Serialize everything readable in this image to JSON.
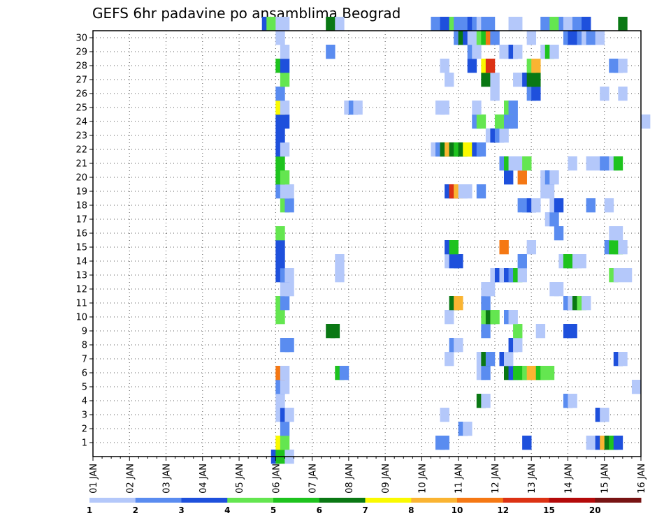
{
  "chart_data": {
    "type": "heatmap",
    "title": "GEFS 6hr padavine po ansamblima Beograd",
    "x_tick_labels": [
      "01 JAN",
      "02 JAN",
      "03 JAN",
      "04 JAN",
      "05 JAN",
      "06 JAN",
      "07 JAN",
      "08 JAN",
      "09 JAN",
      "10 JAN",
      "11 JAN",
      "12 JAN",
      "13 JAN",
      "14 JAN",
      "15 JAN",
      "16 JAN"
    ],
    "xlim": [
      "01 JAN 00Z",
      "16 JAN 00Z"
    ],
    "x_step_hours": 6,
    "y_tick_labels": [
      "1",
      "2",
      "3",
      "4",
      "5",
      "6",
      "7",
      "8",
      "9",
      "10",
      "11",
      "12",
      "13",
      "14",
      "15",
      "16",
      "17",
      "18",
      "19",
      "20",
      "21",
      "22",
      "23",
      "24",
      "25",
      "26",
      "27",
      "28",
      "29",
      "30"
    ],
    "ylim": [
      0,
      30
    ],
    "grid": true,
    "legend_placement": "bottom",
    "legend": {
      "labels": [
        "1",
        "2",
        "3",
        "4",
        "5",
        "6",
        "7",
        "8",
        "10",
        "12",
        "15",
        "20"
      ],
      "colors": [
        "#b4c8fa",
        "#5a8cf0",
        "#1e50dc",
        "#64e650",
        "#1ec31e",
        "#0a7814",
        "#fafa00",
        "#fab432",
        "#f57814",
        "#dc3214",
        "#b40a0a",
        "#781414"
      ]
    },
    "cell_value_meaning": "legend color class index: 0 = [1,2), 1 = [2,3), 2 = [3,4), 3 = [4,5), 4 = [5,6), 5 = [6,7), 6 = [7,8), 7 = [8,10), 8 = [10,12), 9 = [12,15), 10 = [15,20), 11 = 20+",
    "cells": [
      [
        9.75,
        0,
        2
      ],
      [
        10,
        0,
        4
      ],
      [
        10.5,
        0,
        0
      ],
      [
        10,
        1,
        6
      ],
      [
        10.25,
        1,
        3
      ],
      [
        18.75,
        1,
        1
      ],
      [
        19,
        1,
        1
      ],
      [
        23.5,
        1,
        2
      ],
      [
        27,
        1,
        0
      ],
      [
        27.25,
        1,
        0
      ],
      [
        27.5,
        1,
        2
      ],
      [
        27.75,
        1,
        7
      ],
      [
        28,
        1,
        5
      ],
      [
        28.25,
        1,
        4
      ],
      [
        28.5,
        1,
        2
      ],
      [
        10.25,
        2,
        1
      ],
      [
        20,
        2,
        1
      ],
      [
        20.25,
        2,
        0
      ],
      [
        10,
        3,
        0
      ],
      [
        10.25,
        3,
        2
      ],
      [
        10.5,
        3,
        0
      ],
      [
        19,
        3,
        0
      ],
      [
        27.5,
        3,
        2
      ],
      [
        27.75,
        3,
        0
      ],
      [
        10,
        4,
        0
      ],
      [
        21,
        4,
        5
      ],
      [
        21.25,
        4,
        0
      ],
      [
        25.75,
        4,
        1
      ],
      [
        26,
        4,
        0
      ],
      [
        10,
        5,
        1
      ],
      [
        10.25,
        5,
        0
      ],
      [
        29.5,
        5,
        0
      ],
      [
        10,
        6,
        8
      ],
      [
        10.25,
        6,
        0
      ],
      [
        13.25,
        6,
        4
      ],
      [
        13.5,
        6,
        1
      ],
      [
        21,
        6,
        0
      ],
      [
        21.25,
        6,
        1
      ],
      [
        22.5,
        6,
        5
      ],
      [
        22.75,
        6,
        2
      ],
      [
        23,
        6,
        4
      ],
      [
        23.25,
        6,
        4
      ],
      [
        23.5,
        6,
        3
      ],
      [
        23.75,
        6,
        7
      ],
      [
        24,
        6,
        7
      ],
      [
        24.25,
        6,
        4
      ],
      [
        24.5,
        6,
        3
      ],
      [
        24.75,
        6,
        3
      ],
      [
        19.25,
        7,
        0
      ],
      [
        21,
        7,
        0
      ],
      [
        21.25,
        7,
        5
      ],
      [
        21.5,
        7,
        1
      ],
      [
        22.25,
        7,
        2
      ],
      [
        22.5,
        7,
        0
      ],
      [
        28.5,
        7,
        2
      ],
      [
        28.75,
        7,
        0
      ],
      [
        10.25,
        8,
        1
      ],
      [
        10.5,
        8,
        1
      ],
      [
        19.5,
        8,
        1
      ],
      [
        19.75,
        8,
        0
      ],
      [
        22.75,
        8,
        2
      ],
      [
        23,
        8,
        0
      ],
      [
        12.75,
        9,
        5
      ],
      [
        13,
        9,
        5
      ],
      [
        21.25,
        9,
        1
      ],
      [
        23,
        9,
        3
      ],
      [
        24.25,
        9,
        0
      ],
      [
        25.75,
        9,
        2
      ],
      [
        26,
        9,
        2
      ],
      [
        10,
        10,
        3
      ],
      [
        19.25,
        10,
        0
      ],
      [
        21.25,
        10,
        3
      ],
      [
        21.5,
        10,
        5
      ],
      [
        21.75,
        10,
        3
      ],
      [
        22.5,
        10,
        1
      ],
      [
        22.75,
        10,
        0
      ],
      [
        10,
        11,
        3
      ],
      [
        10.25,
        11,
        1
      ],
      [
        19.5,
        11,
        5
      ],
      [
        19.75,
        11,
        7
      ],
      [
        21.25,
        11,
        1
      ],
      [
        25.75,
        11,
        1
      ],
      [
        26,
        11,
        0
      ],
      [
        26.25,
        11,
        5
      ],
      [
        26.5,
        11,
        3
      ],
      [
        26.75,
        11,
        0
      ],
      [
        10.25,
        12,
        0
      ],
      [
        10.5,
        12,
        0
      ],
      [
        21.25,
        12,
        0
      ],
      [
        21.5,
        12,
        0
      ],
      [
        25,
        12,
        0
      ],
      [
        25.25,
        12,
        0
      ],
      [
        10,
        13,
        2
      ],
      [
        10.25,
        13,
        1
      ],
      [
        10.5,
        13,
        0
      ],
      [
        13.25,
        13,
        0
      ],
      [
        21.75,
        13,
        0
      ],
      [
        22,
        13,
        2
      ],
      [
        22.25,
        13,
        0
      ],
      [
        22.5,
        13,
        2
      ],
      [
        22.75,
        13,
        1
      ],
      [
        23,
        13,
        4
      ],
      [
        23.25,
        13,
        0
      ],
      [
        28.25,
        13,
        3
      ],
      [
        28.5,
        13,
        0
      ],
      [
        29,
        13,
        0
      ],
      [
        10,
        14,
        2
      ],
      [
        13.25,
        14,
        0
      ],
      [
        19.25,
        14,
        0
      ],
      [
        19.5,
        14,
        2
      ],
      [
        19.75,
        14,
        2
      ],
      [
        23.25,
        14,
        1
      ],
      [
        25.5,
        14,
        0
      ],
      [
        25.75,
        14,
        4
      ],
      [
        26,
        14,
        4
      ],
      [
        26.25,
        14,
        0
      ],
      [
        26.5,
        14,
        0
      ],
      [
        10,
        15,
        2
      ],
      [
        19.25,
        15,
        2
      ],
      [
        19.5,
        15,
        4
      ],
      [
        22.25,
        15,
        8
      ],
      [
        23.75,
        15,
        0
      ],
      [
        28,
        15,
        1
      ],
      [
        28.25,
        15,
        4
      ],
      [
        28.5,
        15,
        4
      ],
      [
        28.75,
        15,
        0
      ],
      [
        10,
        16,
        3
      ],
      [
        25.25,
        16,
        1
      ],
      [
        28.25,
        16,
        0
      ],
      [
        28.5,
        16,
        0
      ],
      [
        24.75,
        17,
        0
      ],
      [
        25,
        17,
        1
      ],
      [
        10.25,
        18,
        3
      ],
      [
        10.5,
        18,
        1
      ],
      [
        23.25,
        18,
        1
      ],
      [
        23.5,
        18,
        1
      ],
      [
        23.75,
        18,
        2
      ],
      [
        24,
        18,
        0
      ],
      [
        25,
        18,
        0
      ],
      [
        25.25,
        18,
        2
      ],
      [
        27,
        18,
        1
      ],
      [
        28,
        18,
        0
      ],
      [
        10,
        19,
        1
      ],
      [
        10.25,
        19,
        0
      ],
      [
        10.5,
        19,
        0
      ],
      [
        19.25,
        19,
        2
      ],
      [
        19.5,
        19,
        9
      ],
      [
        19.75,
        19,
        7
      ],
      [
        20,
        19,
        0
      ],
      [
        20.25,
        19,
        0
      ],
      [
        21,
        19,
        1
      ],
      [
        24.5,
        19,
        0
      ],
      [
        24.75,
        19,
        0
      ],
      [
        10,
        20,
        4
      ],
      [
        10.25,
        20,
        3
      ],
      [
        22.5,
        20,
        2
      ],
      [
        23.25,
        20,
        8
      ],
      [
        24.5,
        20,
        0
      ],
      [
        24.75,
        20,
        1
      ],
      [
        25,
        20,
        0
      ],
      [
        10,
        21,
        4
      ],
      [
        22.25,
        21,
        1
      ],
      [
        22.5,
        21,
        4
      ],
      [
        22.75,
        21,
        0
      ],
      [
        23,
        21,
        0
      ],
      [
        23.25,
        21,
        0
      ],
      [
        23.5,
        21,
        3
      ],
      [
        26,
        21,
        0
      ],
      [
        27,
        21,
        0
      ],
      [
        27.5,
        21,
        0
      ],
      [
        27.75,
        21,
        1
      ],
      [
        28.25,
        21,
        0
      ],
      [
        28.5,
        21,
        4
      ],
      [
        10,
        22,
        2
      ],
      [
        10.25,
        22,
        0
      ],
      [
        18.5,
        22,
        0
      ],
      [
        18.75,
        22,
        1
      ],
      [
        19,
        22,
        5
      ],
      [
        19.25,
        22,
        7
      ],
      [
        19.5,
        22,
        5
      ],
      [
        19.75,
        22,
        4
      ],
      [
        20,
        22,
        5
      ],
      [
        20.25,
        22,
        6
      ],
      [
        20.5,
        22,
        6
      ],
      [
        20.75,
        22,
        2
      ],
      [
        21,
        22,
        1
      ],
      [
        10,
        23,
        2
      ],
      [
        21.5,
        23,
        0
      ],
      [
        21.75,
        23,
        2
      ],
      [
        22,
        23,
        1
      ],
      [
        22.25,
        23,
        0
      ],
      [
        10,
        24,
        2
      ],
      [
        10.25,
        24,
        2
      ],
      [
        20.75,
        24,
        1
      ],
      [
        21,
        24,
        3
      ],
      [
        22,
        24,
        3
      ],
      [
        22.25,
        24,
        3
      ],
      [
        22.5,
        24,
        1
      ],
      [
        22.75,
        24,
        1
      ],
      [
        30,
        24,
        0
      ],
      [
        10,
        25,
        6
      ],
      [
        10.25,
        25,
        0
      ],
      [
        13.75,
        25,
        0
      ],
      [
        14,
        25,
        1
      ],
      [
        14.25,
        25,
        0
      ],
      [
        18.75,
        25,
        0
      ],
      [
        19,
        25,
        0
      ],
      [
        20.75,
        25,
        0
      ],
      [
        22.5,
        25,
        3
      ],
      [
        22.75,
        25,
        1
      ],
      [
        10,
        26,
        1
      ],
      [
        21.75,
        26,
        0
      ],
      [
        23.75,
        26,
        1
      ],
      [
        24,
        26,
        2
      ],
      [
        27.75,
        26,
        0
      ],
      [
        28.75,
        26,
        0
      ],
      [
        10.25,
        27,
        3
      ],
      [
        19.25,
        27,
        0
      ],
      [
        21.25,
        27,
        5
      ],
      [
        21.75,
        27,
        0
      ],
      [
        23,
        27,
        0
      ],
      [
        23.5,
        27,
        2
      ],
      [
        23.75,
        27,
        5
      ],
      [
        24,
        27,
        5
      ],
      [
        10,
        28,
        4
      ],
      [
        10.25,
        28,
        2
      ],
      [
        19,
        28,
        0
      ],
      [
        20.5,
        28,
        2
      ],
      [
        21.25,
        28,
        6
      ],
      [
        21.5,
        28,
        9
      ],
      [
        23.75,
        28,
        3
      ],
      [
        24,
        28,
        7
      ],
      [
        28.25,
        28,
        1
      ],
      [
        28.5,
        28,
        1
      ],
      [
        28.75,
        28,
        0
      ],
      [
        10.25,
        29,
        0
      ],
      [
        12.75,
        29,
        1
      ],
      [
        20.5,
        29,
        1
      ],
      [
        20.75,
        29,
        0
      ],
      [
        22.25,
        29,
        0
      ],
      [
        22.5,
        29,
        0
      ],
      [
        22.75,
        29,
        2
      ],
      [
        23,
        29,
        0
      ],
      [
        24.5,
        29,
        0
      ],
      [
        24.75,
        29,
        4
      ],
      [
        25,
        29,
        0
      ],
      [
        10,
        30,
        0
      ],
      [
        19.75,
        30,
        1
      ],
      [
        20,
        30,
        5
      ],
      [
        20.25,
        30,
        2
      ],
      [
        20.5,
        30,
        0
      ],
      [
        20.75,
        30,
        0
      ],
      [
        21,
        30,
        3
      ],
      [
        21.25,
        30,
        4
      ],
      [
        21.5,
        30,
        8
      ],
      [
        21.75,
        30,
        1
      ],
      [
        23.75,
        30,
        0
      ],
      [
        25.75,
        30,
        1
      ],
      [
        26,
        30,
        2
      ],
      [
        26.25,
        30,
        2
      ],
      [
        26.5,
        30,
        1
      ],
      [
        26.75,
        30,
        0
      ],
      [
        27,
        30,
        1
      ],
      [
        27.5,
        30,
        0
      ],
      [
        9.25,
        31,
        2
      ],
      [
        9.5,
        31,
        3
      ],
      [
        10,
        31,
        0
      ],
      [
        10.25,
        31,
        0
      ],
      [
        12.75,
        31,
        5
      ],
      [
        13,
        31,
        5
      ],
      [
        13.25,
        31,
        0
      ],
      [
        18.5,
        31,
        1
      ],
      [
        18.75,
        31,
        1
      ],
      [
        19,
        31,
        2
      ],
      [
        19.25,
        31,
        2
      ],
      [
        19.5,
        31,
        3
      ],
      [
        19.75,
        31,
        1
      ],
      [
        20,
        31,
        1
      ],
      [
        20.25,
        31,
        1
      ],
      [
        20.5,
        31,
        2
      ],
      [
        20.75,
        31,
        1
      ],
      [
        21,
        31,
        0
      ],
      [
        21.25,
        31,
        1
      ],
      [
        21.5,
        31,
        1
      ],
      [
        22.75,
        31,
        0
      ],
      [
        23,
        31,
        0
      ],
      [
        24.5,
        31,
        1
      ],
      [
        25,
        31,
        3
      ],
      [
        25.5,
        31,
        1
      ],
      [
        25.75,
        31,
        0
      ],
      [
        26.25,
        31,
        1
      ],
      [
        26.5,
        31,
        1
      ],
      [
        26.75,
        31,
        2
      ],
      [
        28.75,
        31,
        5
      ]
    ]
  }
}
